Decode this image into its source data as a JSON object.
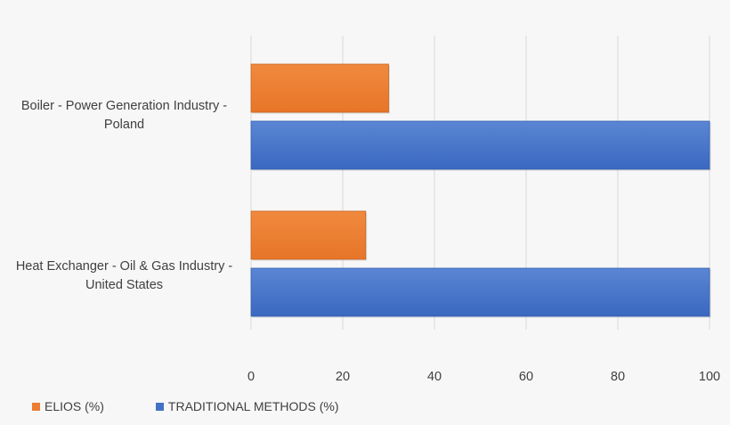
{
  "chart_data": {
    "type": "bar",
    "orientation": "horizontal",
    "categories": [
      "Boiler - Power Generation Industry - Poland",
      "Heat Exchanger - Oil & Gas Industry - United States"
    ],
    "category_lines": [
      [
        "Boiler - Power Generation Industry -",
        "Poland"
      ],
      [
        "Heat Exchanger - Oil & Gas Industry -",
        "United States"
      ]
    ],
    "series": [
      {
        "name": "ELIOS (%)",
        "values": [
          30,
          25
        ],
        "color": "#ed7d31"
      },
      {
        "name": "TRADITIONAL METHODS (%)",
        "values": [
          100,
          100
        ],
        "color": "#4472c4"
      }
    ],
    "xlim": [
      0,
      100
    ],
    "xticks": [
      "0",
      "20",
      "40",
      "60",
      "80",
      "100"
    ],
    "grid": true,
    "legend_position": "bottom-left"
  }
}
